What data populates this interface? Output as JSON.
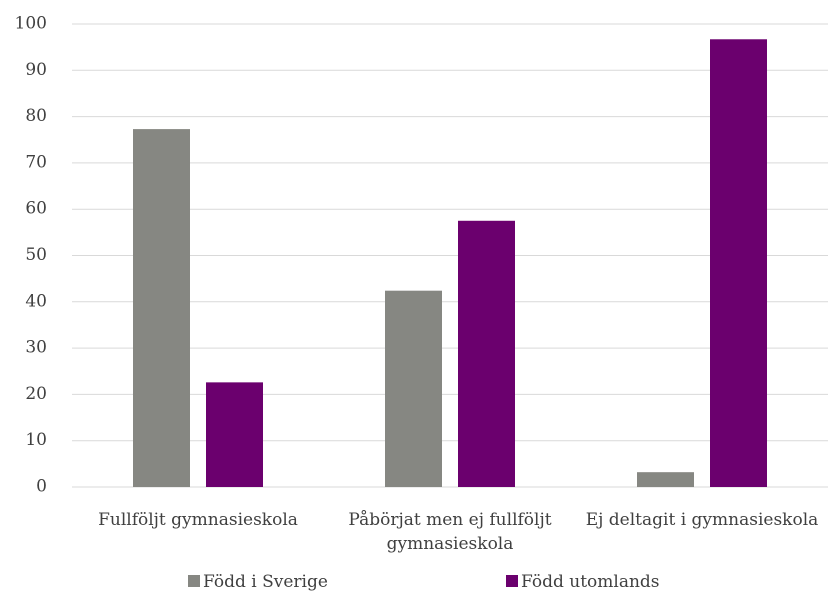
{
  "chart_data": {
    "type": "bar",
    "title": "",
    "xlabel": "",
    "ylabel": "",
    "ylim": [
      0,
      100
    ],
    "yticks": [
      0,
      10,
      20,
      30,
      40,
      50,
      60,
      70,
      80,
      90,
      100
    ],
    "grid": true,
    "legend_position": "bottom",
    "categories": [
      [
        "Fullföljt gymnasieskola"
      ],
      [
        "Påbörjat men ej fullföljt",
        "gymnasieskola"
      ],
      [
        "Ej deltagit i gymnasieskola"
      ]
    ],
    "series": [
      {
        "name": "Född i Sverige",
        "color": "#868782",
        "values": [
          77.3,
          42.4,
          3.2
        ]
      },
      {
        "name": "Född utomlands",
        "color": "#6b006e",
        "values": [
          22.6,
          57.5,
          96.7
        ]
      }
    ]
  }
}
